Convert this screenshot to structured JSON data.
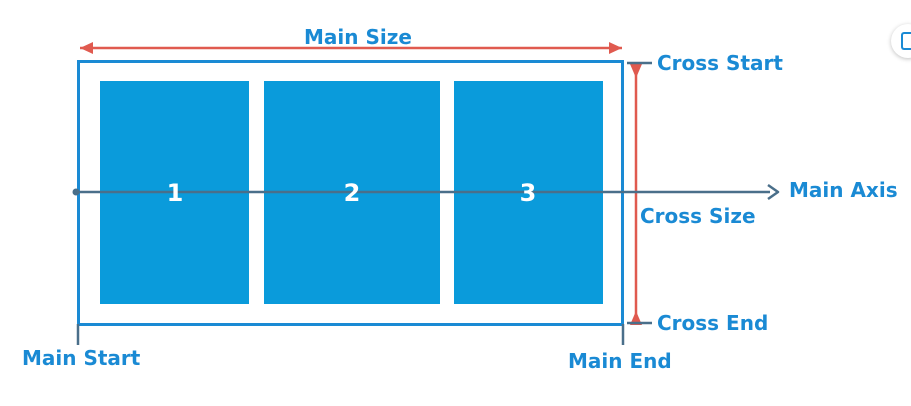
{
  "diagram": {
    "labels": {
      "main_size": "Main Size",
      "cross_start": "Cross Start",
      "main_axis": "Main Axis",
      "cross_size": "Cross Size",
      "cross_end": "Cross End",
      "main_start": "Main Start",
      "main_end": "Main End"
    },
    "items": [
      "1",
      "2",
      "3"
    ],
    "colors": {
      "label_blue": "#1a8ad4",
      "item_blue": "#0a9bdb",
      "dimension_red": "#e05a4f",
      "axis_slate": "#4a6f8a"
    }
  }
}
